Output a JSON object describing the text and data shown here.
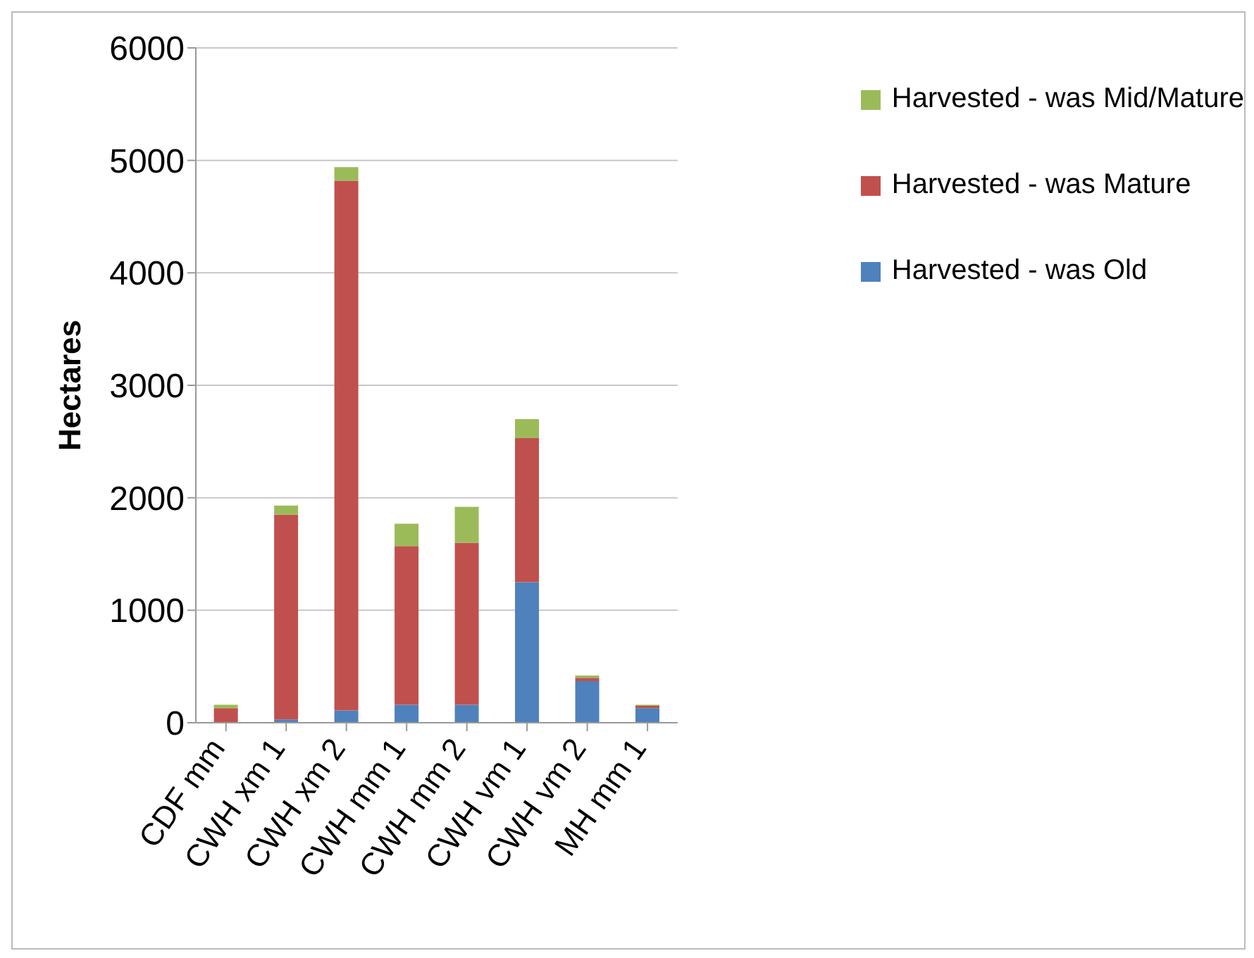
{
  "chart_data": {
    "type": "bar",
    "stacked": true,
    "ylabel": "Hectares",
    "categories": [
      "CDF mm",
      "CWH xm 1",
      "CWH xm 2",
      "CWH mm 1",
      "CWH mm 2",
      "CWH vm 1",
      "CWH vm 2",
      "MH  mm 1"
    ],
    "series": [
      {
        "name": "Harvested - was Old",
        "color": "#4f81bd",
        "values": [
          0,
          30,
          110,
          160,
          160,
          1250,
          370,
          130
        ]
      },
      {
        "name": "Harvested - was Mature",
        "color": "#c0504d",
        "values": [
          130,
          1820,
          4710,
          1410,
          1440,
          1280,
          30,
          20
        ]
      },
      {
        "name": "Harvested - was Mid/Mature",
        "color": "#9bbb59",
        "values": [
          30,
          80,
          120,
          200,
          320,
          170,
          20,
          10
        ]
      }
    ],
    "ylim": [
      0,
      6000
    ],
    "yticks": [
      0,
      1000,
      2000,
      3000,
      4000,
      5000,
      6000
    ],
    "grid": "y",
    "legend": "top right"
  }
}
